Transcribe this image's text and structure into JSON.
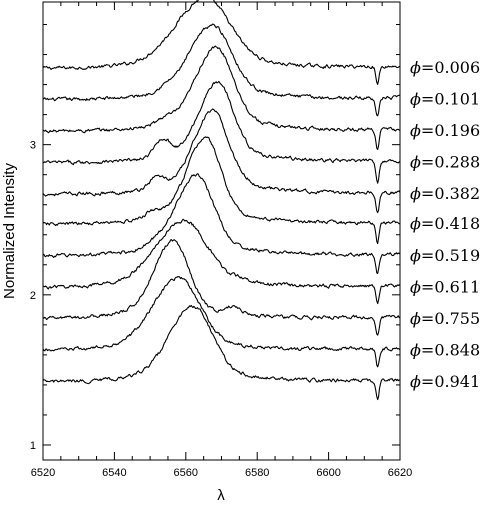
{
  "chart_data": {
    "type": "line",
    "title": "",
    "xlabel": "λ",
    "ylabel": "Normalized Intensity",
    "xlim": [
      6520,
      6620
    ],
    "ylim": [
      0.9,
      3.95
    ],
    "x_ticks": [
      6520,
      6540,
      6560,
      6580,
      6600,
      6620
    ],
    "y_ticks": [
      1,
      2,
      3
    ],
    "x_tick_labels": [
      "6520",
      "6540",
      "6560",
      "6580",
      "6600",
      "6620"
    ],
    "y_tick_labels": [
      "1",
      "2",
      "3"
    ],
    "legend": "right",
    "phase_symbol": "ϕ",
    "telluric_line": 6613.7,
    "series": [
      {
        "name": "=0.006",
        "offset": 3.51,
        "peak_x": 6565.5,
        "peak_y": 0.4,
        "width": 7.0,
        "blue_bump_x": 6554,
        "blue_bump_y": 0.0,
        "red_bump_x": 6575,
        "red_bump_y": 0.0,
        "dip_depth": 0.12
      },
      {
        "name": "=0.101",
        "offset": 3.3,
        "peak_x": 6567.5,
        "peak_y": 0.43,
        "width": 5.5,
        "blue_bump_x": 6554,
        "blue_bump_y": 0.02,
        "red_bump_x": 6575,
        "red_bump_y": 0.0,
        "dip_depth": 0.13
      },
      {
        "name": "=0.196",
        "offset": 3.09,
        "peak_x": 6568.5,
        "peak_y": 0.49,
        "width": 5.0,
        "blue_bump_x": 6554,
        "blue_bump_y": 0.04,
        "red_bump_x": 6575,
        "red_bump_y": 0.0,
        "dip_depth": 0.13
      },
      {
        "name": "=0.288",
        "offset": 2.88,
        "peak_x": 6569.0,
        "peak_y": 0.47,
        "width": 4.5,
        "blue_bump_x": 6553.5,
        "blue_bump_y": 0.12,
        "red_bump_x": 6575,
        "red_bump_y": 0.0,
        "dip_depth": 0.14
      },
      {
        "name": "=0.382",
        "offset": 2.67,
        "peak_x": 6567.5,
        "peak_y": 0.49,
        "width": 4.5,
        "blue_bump_x": 6552.0,
        "blue_bump_y": 0.08,
        "red_bump_x": 6576,
        "red_bump_y": 0.02,
        "dip_depth": 0.14
      },
      {
        "name": "=0.418",
        "offset": 2.47,
        "peak_x": 6565.5,
        "peak_y": 0.51,
        "width": 4.5,
        "blue_bump_x": 6551.0,
        "blue_bump_y": 0.05,
        "red_bump_x": 6576,
        "red_bump_y": 0.0,
        "dip_depth": 0.13
      },
      {
        "name": "=0.519",
        "offset": 2.26,
        "peak_x": 6563.0,
        "peak_y": 0.47,
        "width": 5.0,
        "blue_bump_x": 6551.0,
        "blue_bump_y": 0.02,
        "red_bump_x": 6576,
        "red_bump_y": 0.0,
        "dip_depth": 0.13
      },
      {
        "name": "=0.611",
        "offset": 2.05,
        "peak_x": 6559.5,
        "peak_y": 0.38,
        "width": 6.5,
        "blue_bump_x": 6551.0,
        "blue_bump_y": 0.0,
        "red_bump_x": 6576,
        "red_bump_y": 0.02,
        "dip_depth": 0.12
      },
      {
        "name": "=0.755",
        "offset": 1.84,
        "peak_x": 6556.5,
        "peak_y": 0.46,
        "width": 4.5,
        "blue_bump_x": 6551.0,
        "blue_bump_y": 0.0,
        "red_bump_x": 6573.5,
        "red_bump_y": 0.05,
        "dip_depth": 0.13
      },
      {
        "name": "=0.848",
        "offset": 1.63,
        "peak_x": 6558.0,
        "peak_y": 0.42,
        "width": 6.0,
        "blue_bump_x": 6551.0,
        "blue_bump_y": 0.0,
        "red_bump_x": 6575,
        "red_bump_y": 0.0,
        "dip_depth": 0.12
      },
      {
        "name": "=0.941",
        "offset": 1.42,
        "peak_x": 6562.0,
        "peak_y": 0.44,
        "width": 5.5,
        "blue_bump_x": 6551.0,
        "blue_bump_y": 0.0,
        "red_bump_x": 6575,
        "red_bump_y": 0.0,
        "dip_depth": 0.12
      }
    ]
  }
}
